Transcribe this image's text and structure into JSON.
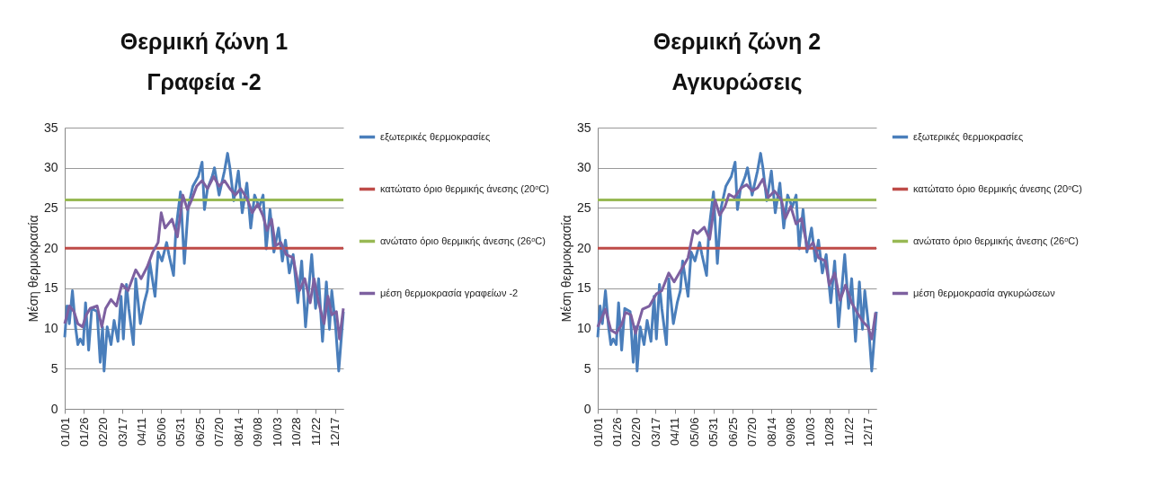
{
  "chart_data": [
    {
      "type": "line",
      "title": "Θερμική ζώνη 1",
      "subtitle": "Γραφεία -2",
      "ylabel": "Μέση θερμοκρασία",
      "ylim": [
        0,
        35
      ],
      "yticks": [
        0,
        5,
        10,
        15,
        20,
        25,
        30,
        35
      ],
      "xlim": [
        "--01-01",
        "--12-28"
      ],
      "xticks": [
        {
          "value": "--01-01",
          "label": "01/01"
        },
        {
          "value": "--01-26",
          "label": "01/26"
        },
        {
          "value": "--02-20",
          "label": "02/20"
        },
        {
          "value": "--03-17",
          "label": "03/17"
        },
        {
          "value": "--04-11",
          "label": "04/11"
        },
        {
          "value": "--05-06",
          "label": "05/06"
        },
        {
          "value": "--05-31",
          "label": "05/31"
        },
        {
          "value": "--06-25",
          "label": "06/25"
        },
        {
          "value": "--07-20",
          "label": "07/20"
        },
        {
          "value": "--08-14",
          "label": "08/14"
        },
        {
          "value": "--09-08",
          "label": "09/08"
        },
        {
          "value": "--10-03",
          "label": "10/03"
        },
        {
          "value": "--10-28",
          "label": "10/28"
        },
        {
          "value": "--11-22",
          "label": "11/22"
        },
        {
          "value": "--12-17",
          "label": "12/17"
        }
      ],
      "grid": "y",
      "legend": "right",
      "series": [
        {
          "name": "εξωτερικές θερμοκρασίες",
          "color": "#4a7ebb",
          "x": [
            "--01-01",
            "--01-04",
            "--01-07",
            "--01-11",
            "--01-15",
            "--01-18",
            "--01-21",
            "--01-25",
            "--01-28",
            "--02-01",
            "--02-05",
            "--02-12",
            "--02-16",
            "--02-19",
            "--02-21",
            "--02-25",
            "--03-02",
            "--03-06",
            "--03-11",
            "--03-15",
            "--03-18",
            "--03-22",
            "--03-25",
            "--03-31",
            "--04-03",
            "--04-09",
            "--04-14",
            "--04-18",
            "--04-21",
            "--04-28",
            "--05-02",
            "--05-07",
            "--05-13",
            "--05-16",
            "--05-22",
            "--05-25",
            "--05-31",
            "--06-05",
            "--06-10",
            "--06-16",
            "--06-23",
            "--06-28",
            "--07-01",
            "--07-05",
            "--07-11",
            "--07-14",
            "--07-20",
            "--07-27",
            "--07-31",
            "--08-03",
            "--08-08",
            "--08-14",
            "--08-19",
            "--08-25",
            "--08-30",
            "--09-04",
            "--09-10",
            "--09-15",
            "--09-19",
            "--09-24",
            "--09-29",
            "--10-05",
            "--10-10",
            "--10-14",
            "--10-19",
            "--10-24",
            "--10-30",
            "--11-04",
            "--11-09",
            "--11-17",
            "--11-22",
            "--11-26",
            "--12-01",
            "--12-06",
            "--12-10",
            "--12-13",
            "--12-18",
            "--12-22",
            "--12-28"
          ],
          "values": [
            8.9,
            12.8,
            10.6,
            14.7,
            10.2,
            8.0,
            8.7,
            8.0,
            13.2,
            7.3,
            12.5,
            12.1,
            5.8,
            10.2,
            4.7,
            10.2,
            8.0,
            11.0,
            8.4,
            14.0,
            8.7,
            15.5,
            12.5,
            8.0,
            16.2,
            10.6,
            13.2,
            14.7,
            18.4,
            14.0,
            19.5,
            18.4,
            20.7,
            19.2,
            16.6,
            22.2,
            27.0,
            18.1,
            25.1,
            27.7,
            28.9,
            30.7,
            24.8,
            27.4,
            28.9,
            30.0,
            26.6,
            29.6,
            31.8,
            30.0,
            25.9,
            29.6,
            24.4,
            28.1,
            22.5,
            26.6,
            25.1,
            26.6,
            19.9,
            24.8,
            19.5,
            22.5,
            18.4,
            21.0,
            16.9,
            19.2,
            13.2,
            18.4,
            10.2,
            19.2,
            12.5,
            16.2,
            8.4,
            15.8,
            9.9,
            14.7,
            10.2,
            4.7,
            12.1
          ]
        },
        {
          "name": "κατώτατο όριο θερμικής άνεσης (20ᵒC)",
          "color": "#be4b48",
          "x": [
            "--01-01",
            "--12-28"
          ],
          "values": [
            20,
            20
          ]
        },
        {
          "name": "ανώτατο όριο θερμικής άνεσης (26ᵒC)",
          "color": "#98b954",
          "x": [
            "--01-01",
            "--12-28"
          ],
          "values": [
            26,
            26
          ]
        },
        {
          "name": "μέση θερμοκρασία γραφείων -2",
          "color": "#7d60a0",
          "x": [
            "--01-01",
            "--01-07",
            "--01-13",
            "--01-18",
            "--01-24",
            "--01-29",
            "--02-03",
            "--02-12",
            "--02-18",
            "--02-23",
            "--03-02",
            "--03-09",
            "--03-16",
            "--03-24",
            "--04-03",
            "--04-10",
            "--04-18",
            "--04-25",
            "--05-02",
            "--05-06",
            "--05-11",
            "--05-20",
            "--05-27",
            "--06-03",
            "--06-09",
            "--06-14",
            "--06-21",
            "--06-28",
            "--07-05",
            "--07-13",
            "--07-20",
            "--07-27",
            "--08-03",
            "--08-10",
            "--08-17",
            "--08-25",
            "--09-01",
            "--09-08",
            "--09-15",
            "--09-20",
            "--09-26",
            "--10-01",
            "--10-08",
            "--10-15",
            "--10-24",
            "--11-01",
            "--11-08",
            "--11-15",
            "--11-20",
            "--11-26",
            "--12-03",
            "--12-08",
            "--12-13",
            "--12-19",
            "--12-23",
            "--12-28"
          ],
          "values": [
            10.6,
            12.8,
            12.1,
            10.6,
            10.2,
            11.7,
            12.5,
            12.8,
            10.2,
            12.5,
            13.6,
            12.8,
            15.5,
            14.7,
            17.3,
            16.2,
            17.7,
            19.5,
            20.7,
            24.4,
            22.5,
            23.6,
            21.4,
            26.6,
            24.8,
            25.9,
            27.7,
            28.4,
            27.4,
            28.9,
            27.7,
            28.4,
            27.4,
            26.6,
            27.4,
            26.2,
            24.4,
            25.5,
            24.0,
            22.2,
            23.6,
            20.3,
            20.7,
            19.2,
            18.8,
            14.7,
            16.2,
            13.2,
            16.2,
            13.2,
            10.6,
            14.0,
            11.7,
            12.1,
            8.7,
            12.5
          ]
        }
      ]
    },
    {
      "type": "line",
      "title": "Θερμική ζώνη 2",
      "subtitle": "Αγκυρώσεις",
      "ylabel": "Μέση θερμοκρασία",
      "ylim": [
        0,
        35
      ],
      "yticks": [
        0,
        5,
        10,
        15,
        20,
        25,
        30,
        35
      ],
      "xlim": [
        "--01-01",
        "--12-28"
      ],
      "xticks": [
        {
          "value": "--01-01",
          "label": "01/01"
        },
        {
          "value": "--01-26",
          "label": "01/26"
        },
        {
          "value": "--02-20",
          "label": "02/20"
        },
        {
          "value": "--03-17",
          "label": "03/17"
        },
        {
          "value": "--04-11",
          "label": "04/11"
        },
        {
          "value": "--05-06",
          "label": "05/06"
        },
        {
          "value": "--05-31",
          "label": "05/31"
        },
        {
          "value": "--06-25",
          "label": "06/25"
        },
        {
          "value": "--07-20",
          "label": "07/20"
        },
        {
          "value": "--08-14",
          "label": "08/14"
        },
        {
          "value": "--09-08",
          "label": "09/08"
        },
        {
          "value": "--10-03",
          "label": "10/03"
        },
        {
          "value": "--10-28",
          "label": "10/28"
        },
        {
          "value": "--11-22",
          "label": "11/22"
        },
        {
          "value": "--12-17",
          "label": "12/17"
        }
      ],
      "grid": "y",
      "legend": "right",
      "series": [
        {
          "name": "εξωτερικές θερμοκρασίες",
          "color": "#4a7ebb",
          "x": [
            "--01-01",
            "--01-04",
            "--01-07",
            "--01-11",
            "--01-15",
            "--01-18",
            "--01-21",
            "--01-25",
            "--01-28",
            "--02-01",
            "--02-05",
            "--02-12",
            "--02-16",
            "--02-19",
            "--02-21",
            "--02-25",
            "--03-02",
            "--03-06",
            "--03-11",
            "--03-15",
            "--03-18",
            "--03-22",
            "--03-25",
            "--03-31",
            "--04-03",
            "--04-09",
            "--04-14",
            "--04-18",
            "--04-21",
            "--04-28",
            "--05-02",
            "--05-07",
            "--05-13",
            "--05-16",
            "--05-22",
            "--05-25",
            "--05-31",
            "--06-05",
            "--06-10",
            "--06-16",
            "--06-23",
            "--06-28",
            "--07-01",
            "--07-05",
            "--07-11",
            "--07-14",
            "--07-20",
            "--07-27",
            "--07-31",
            "--08-03",
            "--08-08",
            "--08-14",
            "--08-19",
            "--08-25",
            "--08-30",
            "--09-04",
            "--09-10",
            "--09-15",
            "--09-19",
            "--09-24",
            "--09-29",
            "--10-05",
            "--10-10",
            "--10-14",
            "--10-19",
            "--10-24",
            "--10-30",
            "--11-04",
            "--11-09",
            "--11-17",
            "--11-22",
            "--11-26",
            "--12-01",
            "--12-06",
            "--12-10",
            "--12-13",
            "--12-18",
            "--12-22",
            "--12-28"
          ],
          "values": [
            8.9,
            12.8,
            10.6,
            14.7,
            10.2,
            8.0,
            8.7,
            8.0,
            13.2,
            7.3,
            12.5,
            12.1,
            5.8,
            10.2,
            4.7,
            10.2,
            8.0,
            11.0,
            8.4,
            14.0,
            8.7,
            15.5,
            12.5,
            8.0,
            16.2,
            10.6,
            13.2,
            14.7,
            18.4,
            14.0,
            19.5,
            18.4,
            20.7,
            19.2,
            16.6,
            22.2,
            27.0,
            18.1,
            25.1,
            27.7,
            28.9,
            30.7,
            24.8,
            27.4,
            28.9,
            30.0,
            26.6,
            29.6,
            31.8,
            30.0,
            25.9,
            29.6,
            24.4,
            28.1,
            22.5,
            26.6,
            25.1,
            26.6,
            19.9,
            24.8,
            19.5,
            22.5,
            18.4,
            21.0,
            16.9,
            19.2,
            13.2,
            18.4,
            10.2,
            19.2,
            12.5,
            16.2,
            8.4,
            15.8,
            9.9,
            14.7,
            10.2,
            4.7,
            12.1
          ]
        },
        {
          "name": "κατώτατο όριο θερμικής άνεσης (20ᵒC)",
          "color": "#be4b48",
          "x": [
            "--01-01",
            "--12-28"
          ],
          "values": [
            20,
            20
          ]
        },
        {
          "name": "ανώτατο όριο θερμικής άνεσης (26ᵒC)",
          "color": "#98b954",
          "x": [
            "--01-01",
            "--12-28"
          ],
          "values": [
            26,
            26
          ]
        },
        {
          "name": "μέση θερμοκρασία αγκυρώσεων",
          "color": "#7d60a0",
          "x": [
            "--01-01",
            "--01-11",
            "--01-18",
            "--01-25",
            "--02-01",
            "--02-06",
            "--02-13",
            "--02-19",
            "--02-28",
            "--03-09",
            "--03-18",
            "--03-25",
            "--04-03",
            "--04-10",
            "--04-19",
            "--04-28",
            "--05-05",
            "--05-10",
            "--05-19",
            "--05-26",
            "--06-02",
            "--06-08",
            "--06-15",
            "--06-20",
            "--06-27",
            "--07-06",
            "--07-13",
            "--07-20",
            "--07-27",
            "--08-03",
            "--08-10",
            "--08-18",
            "--08-27",
            "--09-01",
            "--09-08",
            "--09-15",
            "--09-22",
            "--09-30",
            "--10-07",
            "--10-14",
            "--10-23",
            "--10-28",
            "--11-04",
            "--11-11",
            "--11-18",
            "--11-26",
            "--12-03",
            "--12-10",
            "--12-17",
            "--12-22",
            "--12-27"
          ],
          "values": [
            10.2,
            12.4,
            9.8,
            9.4,
            10.5,
            12.0,
            11.7,
            9.4,
            12.4,
            12.8,
            14.3,
            14.7,
            16.9,
            15.8,
            17.3,
            18.8,
            22.2,
            21.8,
            22.6,
            21.1,
            26.0,
            24.1,
            25.2,
            26.7,
            26.3,
            27.5,
            27.9,
            27.1,
            27.5,
            28.6,
            26.3,
            27.1,
            26.0,
            23.7,
            25.2,
            23.0,
            23.7,
            19.9,
            20.7,
            18.8,
            18.4,
            15.4,
            16.9,
            13.5,
            15.4,
            13.2,
            12.0,
            10.9,
            10.2,
            8.7,
            12.0
          ]
        }
      ]
    }
  ]
}
